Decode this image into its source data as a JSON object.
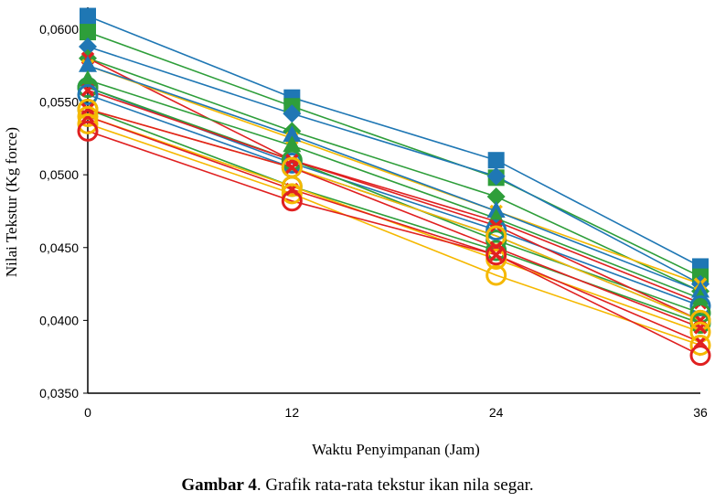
{
  "caption": {
    "label": "Gambar 4",
    "text": ". Grafik rata-rata tekstur ikan nila segar."
  },
  "chart_data": {
    "type": "line",
    "xlabel": "Waktu Penyimpanan (Jam)",
    "ylabel": "Nilai Tekstur (Kg force)",
    "x": [
      0,
      12,
      24,
      36
    ],
    "x_tick_labels": [
      "0",
      "12",
      "24",
      "36"
    ],
    "ylim": [
      0.035,
      0.0615
    ],
    "y_ticks": [
      0.035,
      0.04,
      0.045,
      0.05,
      0.055,
      0.06
    ],
    "y_tick_labels": [
      "0,0350",
      "0,0400",
      "0,0450",
      "0,0500",
      "0,0550",
      "0,0600"
    ],
    "grid": false,
    "legend": "none",
    "series": [
      {
        "color": "#1f77b4",
        "marker": "square",
        "values": [
          0.0609,
          0.0553,
          0.051,
          0.0437
        ]
      },
      {
        "color": "#2e9e3a",
        "marker": "square",
        "values": [
          0.0598,
          0.0547,
          0.0498,
          0.043
        ]
      },
      {
        "color": "#1f77b4",
        "marker": "diamond",
        "values": [
          0.0588,
          0.0542,
          0.0499,
          0.0425
        ]
      },
      {
        "color": "#2e9e3a",
        "marker": "diamond",
        "values": [
          0.058,
          0.053,
          0.0485,
          0.042
        ]
      },
      {
        "color": "#e02020",
        "marker": "x",
        "values": [
          0.058,
          0.051,
          0.0468,
          0.0412
        ]
      },
      {
        "color": "#f5b800",
        "marker": "x",
        "values": [
          0.0575,
          0.0525,
          0.0475,
          0.0425
        ]
      },
      {
        "color": "#1f77b4",
        "marker": "triangle",
        "values": [
          0.0575,
          0.0527,
          0.0475,
          0.042
        ]
      },
      {
        "color": "#2e9e3a",
        "marker": "triangle",
        "values": [
          0.0565,
          0.052,
          0.047,
          0.0415
        ]
      },
      {
        "color": "#1f77b4",
        "marker": "circle",
        "values": [
          0.056,
          0.0508,
          0.0462,
          0.041
        ]
      },
      {
        "color": "#2e9e3a",
        "marker": "circle",
        "values": [
          0.056,
          0.051,
          0.0455,
          0.0405
        ]
      },
      {
        "color": "#e02020",
        "marker": "x",
        "values": [
          0.0558,
          0.051,
          0.0465,
          0.04
        ]
      },
      {
        "color": "#1f77b4",
        "marker": "circle",
        "values": [
          0.0555,
          0.0505,
          0.0458,
          0.04
        ]
      },
      {
        "color": "#2e9e3a",
        "marker": "circle",
        "values": [
          0.0545,
          0.0492,
          0.0448,
          0.0398
        ]
      },
      {
        "color": "#f5b800",
        "marker": "circle",
        "values": [
          0.0545,
          0.0505,
          0.0458,
          0.04
        ]
      },
      {
        "color": "#e02020",
        "marker": "x",
        "values": [
          0.0545,
          0.0505,
          0.045,
          0.0395
        ]
      },
      {
        "color": "#f5b800",
        "marker": "circle",
        "values": [
          0.054,
          0.0492,
          0.0442,
          0.0392
        ]
      },
      {
        "color": "#e02020",
        "marker": "x",
        "values": [
          0.054,
          0.049,
          0.0445,
          0.0385
        ]
      },
      {
        "color": "#f5b800",
        "marker": "circle",
        "values": [
          0.0535,
          0.0487,
          0.0431,
          0.0383
        ]
      },
      {
        "color": "#e02020",
        "marker": "circle",
        "values": [
          0.053,
          0.0482,
          0.0445,
          0.0376
        ]
      }
    ]
  }
}
